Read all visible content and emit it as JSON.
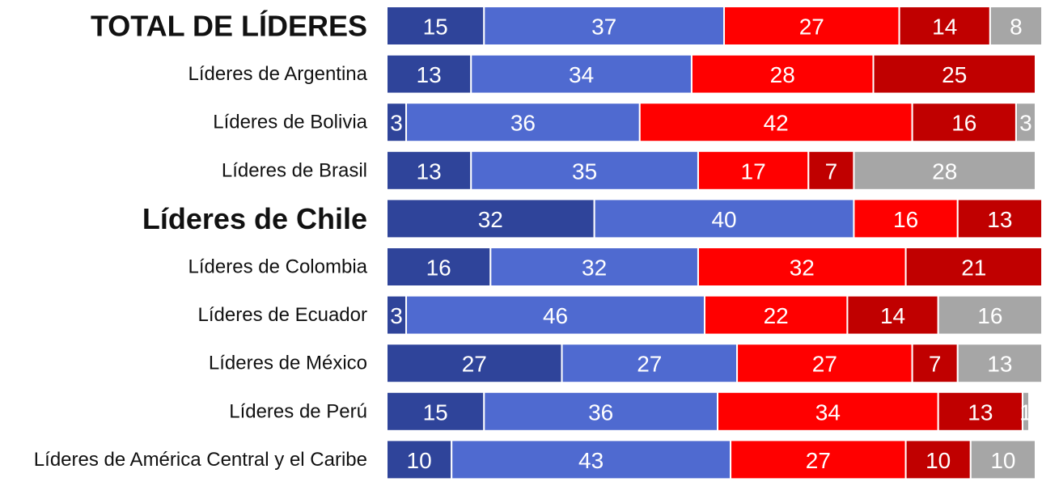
{
  "chart_data": {
    "type": "bar",
    "orientation": "horizontal",
    "stacked": true,
    "title": "",
    "xlabel": "",
    "ylabel": "",
    "xlim": [
      0,
      100
    ],
    "grid": false,
    "legend": "none",
    "categories": [
      "TOTAL DE LÍDERES",
      "Líderes de Argentina",
      "Líderes de Bolivia",
      "Líderes de Brasil",
      "Líderes de Chile",
      "Líderes de Colombia",
      "Líderes de Ecuador",
      "Líderes de México",
      "Líderes de Perú",
      "Líderes de América Central y el Caribe"
    ],
    "highlighted_categories": [
      "TOTAL DE LÍDERES",
      "Líderes de Chile"
    ],
    "highlight_color": "#2e45a0",
    "series": [
      {
        "color": "#2f449a",
        "values": [
          15,
          13,
          3,
          13,
          32,
          16,
          3,
          27,
          15,
          10
        ]
      },
      {
        "color": "#4f6ad0",
        "values": [
          37,
          34,
          36,
          35,
          40,
          32,
          46,
          27,
          36,
          43
        ]
      },
      {
        "color": "#ff0000",
        "values": [
          27,
          28,
          42,
          17,
          16,
          32,
          22,
          27,
          34,
          27
        ]
      },
      {
        "color": "#c00000",
        "values": [
          14,
          25,
          16,
          7,
          13,
          21,
          14,
          7,
          13,
          10
        ]
      },
      {
        "color": "#a6a6a6",
        "values": [
          8,
          0,
          3,
          28,
          0,
          0,
          16,
          13,
          1,
          10
        ]
      }
    ]
  }
}
